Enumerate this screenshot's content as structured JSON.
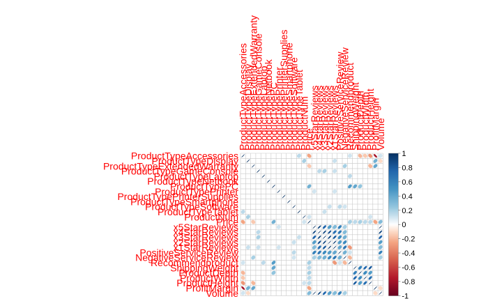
{
  "chart_data": {
    "type": "heatmap",
    "title": "",
    "variables": [
      "ProductTypeAccessories",
      "ProductTypeDisplay",
      "ProductTypeExtendedWarranty",
      "ProductTypeGameConsole",
      "ProductTypeLaptop",
      "ProductTypeNetbook",
      "ProductTypePC",
      "ProductTypePrinter",
      "ProductTypePrinterSupplies",
      "ProductTypeSmartphone",
      "ProductTypeSoftware",
      "ProductTypeTablet",
      "ProductNum",
      "Price",
      "x5StarReviews",
      "x4StarReviews",
      "x3StarReviews",
      "x2StarReviews",
      "x1StarReviews",
      "PositiveServiceReview",
      "NegativeServiceReview",
      "Recommendproduct",
      "ShippingWeight",
      "ProductDepth",
      "ProductWidth",
      "ProductHeight",
      "ProfitMargin",
      "Volume"
    ],
    "correlations": [
      [
        0,
        11,
        0.15
      ],
      [
        0,
        13,
        -0.25
      ],
      [
        0,
        21,
        0.1
      ],
      [
        0,
        23,
        -0.2
      ],
      [
        0,
        24,
        -0.15
      ],
      [
        0,
        25,
        -0.3
      ],
      [
        0,
        26,
        -0.8
      ],
      [
        0,
        27,
        0.1
      ],
      [
        1,
        12,
        0.2
      ],
      [
        1,
        18,
        0.12
      ],
      [
        1,
        26,
        0.35
      ],
      [
        1,
        27,
        -0.1
      ],
      [
        2,
        13,
        -0.15
      ],
      [
        2,
        20,
        0.2
      ],
      [
        2,
        25,
        -0.2
      ],
      [
        2,
        26,
        0.4
      ],
      [
        3,
        15,
        0.15
      ],
      [
        3,
        16,
        0.2
      ],
      [
        3,
        18,
        0.12
      ],
      [
        4,
        21,
        0.15
      ],
      [
        6,
        13,
        0.35
      ],
      [
        6,
        21,
        0.45
      ],
      [
        6,
        22,
        0.4
      ],
      [
        6,
        23,
        0.25
      ],
      [
        7,
        14,
        0.1
      ],
      [
        7,
        18,
        0.1
      ],
      [
        10,
        17,
        0.12
      ],
      [
        10,
        19,
        0.15
      ],
      [
        10,
        20,
        0.1
      ],
      [
        11,
        16,
        0.12
      ],
      [
        12,
        13,
        0.1
      ],
      [
        12,
        25,
        0.1
      ],
      [
        13,
        21,
        0.2
      ],
      [
        13,
        22,
        0.15
      ],
      [
        13,
        23,
        0.2
      ],
      [
        13,
        24,
        0.15
      ],
      [
        13,
        25,
        0.15
      ],
      [
        13,
        26,
        -0.25
      ],
      [
        13,
        27,
        0.3
      ],
      [
        14,
        15,
        0.9
      ],
      [
        14,
        16,
        0.75
      ],
      [
        14,
        17,
        0.45
      ],
      [
        14,
        18,
        0.3
      ],
      [
        14,
        19,
        0.6
      ],
      [
        14,
        20,
        0.2
      ],
      [
        14,
        27,
        1.0
      ],
      [
        15,
        16,
        0.9
      ],
      [
        15,
        17,
        0.85
      ],
      [
        15,
        18,
        0.7
      ],
      [
        15,
        19,
        0.65
      ],
      [
        15,
        20,
        0.3
      ],
      [
        15,
        27,
        0.9
      ],
      [
        16,
        17,
        0.9
      ],
      [
        16,
        18,
        0.8
      ],
      [
        16,
        19,
        0.55
      ],
      [
        16,
        20,
        0.35
      ],
      [
        16,
        27,
        0.75
      ],
      [
        17,
        18,
        0.95
      ],
      [
        17,
        19,
        0.45
      ],
      [
        17,
        20,
        0.55
      ],
      [
        17,
        27,
        0.45
      ],
      [
        18,
        19,
        0.4
      ],
      [
        18,
        20,
        0.65
      ],
      [
        18,
        21,
        -0.3
      ],
      [
        18,
        27,
        0.3
      ],
      [
        19,
        20,
        0.35
      ],
      [
        19,
        21,
        0.1
      ],
      [
        19,
        27,
        0.6
      ],
      [
        20,
        21,
        -0.2
      ],
      [
        20,
        27,
        0.2
      ],
      [
        22,
        23,
        0.6
      ],
      [
        22,
        24,
        0.75
      ],
      [
        22,
        25,
        0.8
      ],
      [
        23,
        24,
        0.55
      ],
      [
        23,
        25,
        0.45
      ],
      [
        24,
        25,
        0.7
      ],
      [
        26,
        27,
        -0.1
      ]
    ],
    "colorbar": {
      "ticks": [
        "1",
        "0.8",
        "0.6",
        "0.4",
        "0.2",
        "0",
        "-0.2",
        "-0.4",
        "-0.6",
        "-0.8",
        "-1"
      ],
      "range": [
        -1,
        1
      ],
      "low_color": "#67001F",
      "mid_color": "#FFFFFF",
      "high_color": "#053061"
    },
    "grid": true,
    "legend_position": "right",
    "label_color": "#FF0000",
    "marker_shape": "ellipse"
  }
}
